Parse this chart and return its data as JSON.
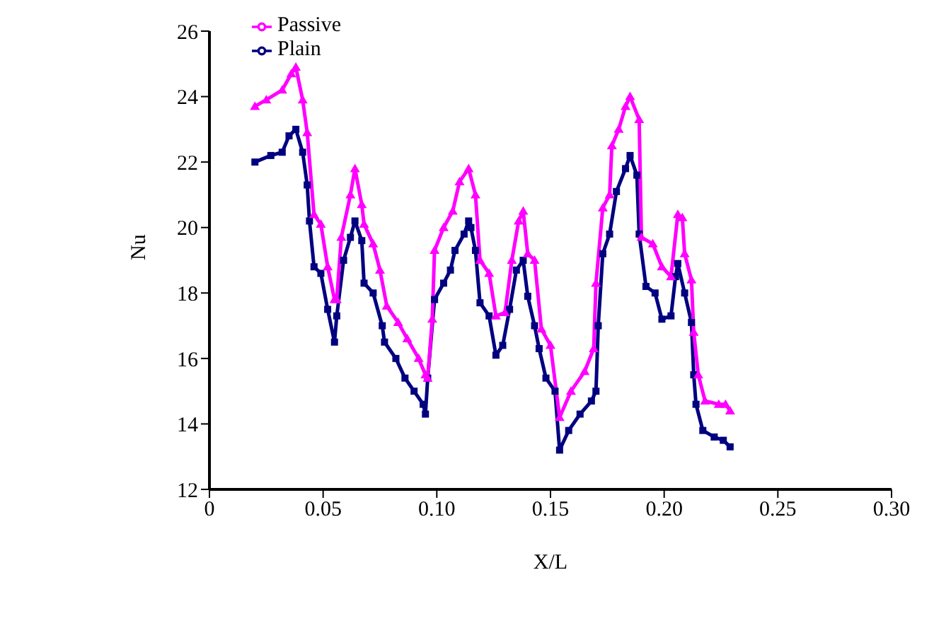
{
  "chart_data": {
    "type": "line",
    "xlabel": "X/L",
    "ylabel": "Nu",
    "xlim": [
      0,
      0.3
    ],
    "xticks": [
      0,
      0.05,
      {
        "value": 0.1,
        "label": "0.10"
      },
      0.15,
      {
        "value": 0.2,
        "label": "0.20"
      },
      0.25,
      {
        "value": 0.3,
        "label": "0.30"
      }
    ],
    "ylim": [
      12,
      26
    ],
    "yticks": [
      12,
      14,
      16,
      18,
      20,
      22,
      24,
      26
    ],
    "grid": false,
    "legend": "top",
    "line_style": "solid",
    "series": [
      {
        "name": "Plain",
        "color": "#000080",
        "marker": "square",
        "x": [
          0.02,
          0.027,
          0.032,
          0.035,
          0.038,
          0.041,
          0.043,
          0.044,
          0.046,
          0.049,
          0.052,
          0.055,
          0.056,
          0.059,
          0.062,
          0.064,
          0.067,
          0.068,
          0.072,
          0.076,
          0.077,
          0.082,
          0.086,
          0.09,
          0.094,
          0.095,
          0.096,
          0.099,
          0.103,
          0.106,
          0.108,
          0.112,
          0.114,
          0.115,
          0.117,
          0.119,
          0.123,
          0.126,
          0.129,
          0.132,
          0.135,
          0.138,
          0.14,
          0.143,
          0.145,
          0.148,
          0.152,
          0.154,
          0.158,
          0.163,
          0.168,
          0.17,
          0.171,
          0.173,
          0.176,
          0.179,
          0.183,
          0.185,
          0.188,
          0.189,
          0.192,
          0.196,
          0.199,
          0.203,
          0.205,
          0.206,
          0.209,
          0.212,
          0.213,
          0.214,
          0.217,
          0.222,
          0.226,
          0.229
        ],
        "values": [
          22.0,
          22.2,
          22.3,
          22.8,
          23.0,
          22.3,
          21.3,
          20.2,
          18.8,
          18.6,
          17.5,
          16.5,
          17.3,
          19.0,
          19.7,
          20.2,
          19.6,
          18.3,
          18.0,
          17.0,
          16.5,
          16.0,
          15.4,
          15.0,
          14.6,
          14.3,
          15.4,
          17.8,
          18.3,
          18.7,
          19.3,
          19.8,
          20.2,
          20.0,
          19.3,
          17.7,
          17.3,
          16.1,
          16.4,
          17.5,
          18.7,
          19.0,
          17.9,
          17.0,
          16.3,
          15.4,
          15.0,
          13.2,
          13.8,
          14.3,
          14.7,
          15.0,
          17.0,
          19.2,
          19.8,
          21.1,
          21.8,
          22.2,
          21.6,
          19.8,
          18.2,
          18.0,
          17.2,
          17.3,
          18.5,
          18.9,
          18.0,
          17.1,
          15.5,
          14.6,
          13.8,
          13.6,
          13.5,
          13.3
        ]
      },
      {
        "name": "Passive",
        "color": "#ff00ff",
        "marker": "triangle",
        "x": [
          0.02,
          0.025,
          0.032,
          0.036,
          0.038,
          0.041,
          0.043,
          0.046,
          0.049,
          0.052,
          0.055,
          0.056,
          0.058,
          0.062,
          0.064,
          0.067,
          0.068,
          0.072,
          0.075,
          0.078,
          0.083,
          0.087,
          0.092,
          0.095,
          0.096,
          0.098,
          0.099,
          0.103,
          0.107,
          0.11,
          0.114,
          0.117,
          0.119,
          0.123,
          0.126,
          0.13,
          0.133,
          0.136,
          0.138,
          0.14,
          0.143,
          0.146,
          0.15,
          0.154,
          0.159,
          0.165,
          0.169,
          0.17,
          0.173,
          0.176,
          0.177,
          0.18,
          0.183,
          0.185,
          0.189,
          0.19,
          0.195,
          0.199,
          0.203,
          0.206,
          0.208,
          0.209,
          0.212,
          0.213,
          0.215,
          0.218,
          0.224,
          0.227,
          0.229
        ],
        "values": [
          23.7,
          23.9,
          24.2,
          24.7,
          24.9,
          23.9,
          22.9,
          20.4,
          20.1,
          18.8,
          17.8,
          17.8,
          19.7,
          21.0,
          21.8,
          20.7,
          20.1,
          19.5,
          18.7,
          17.6,
          17.1,
          16.6,
          16.0,
          15.5,
          15.4,
          17.2,
          19.3,
          20.0,
          20.5,
          21.4,
          21.8,
          21.0,
          19.0,
          18.6,
          17.3,
          17.4,
          19.0,
          20.2,
          20.5,
          19.2,
          19.0,
          16.9,
          16.4,
          14.2,
          15.0,
          15.6,
          16.3,
          18.3,
          20.6,
          21.0,
          22.5,
          23.0,
          23.7,
          24.0,
          23.3,
          19.7,
          19.5,
          18.8,
          18.5,
          20.4,
          20.3,
          19.2,
          18.4,
          16.8,
          15.5,
          14.7,
          14.6,
          14.6,
          14.4
        ]
      }
    ]
  }
}
